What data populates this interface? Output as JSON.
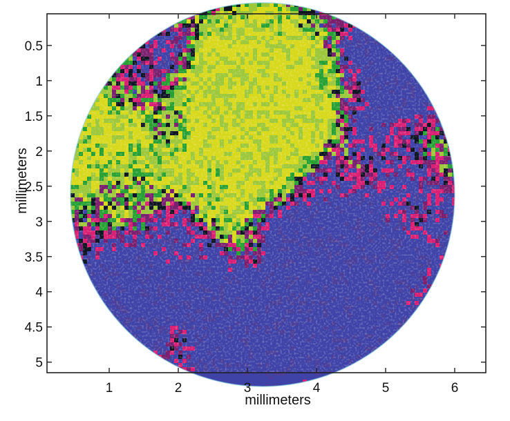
{
  "chart_data": {
    "type": "heatmap",
    "title": "",
    "xlabel": "millimeters",
    "ylabel": "millimeters",
    "xlim": [
      0.1,
      6.45
    ],
    "ylim": [
      0.05,
      5.15
    ],
    "y_reversed": true,
    "x_ticks": [
      1,
      2,
      3,
      4,
      5,
      6
    ],
    "x_tick_labels": [
      "1",
      "2",
      "3",
      "4",
      "5",
      "6"
    ],
    "y_ticks": [
      0.5,
      1,
      1.5,
      2,
      2.5,
      3,
      3.5,
      4,
      4.5,
      5
    ],
    "y_tick_labels": [
      "0.5",
      "1",
      "1.5",
      "2",
      "2.5",
      "3",
      "3.5",
      "4",
      "4.5",
      "5"
    ],
    "region": {
      "shape": "circle",
      "center": [
        3.22,
        2.62
      ],
      "radius": 2.78
    },
    "grid": false,
    "legend": "none",
    "colors": [
      "#3f43a8",
      "#4a3f9a",
      "#d81f73",
      "#7a1f6e",
      "#26a032",
      "#d8d81c",
      "#9cc83a",
      "#0e1422",
      "#5ab4cf"
    ]
  }
}
